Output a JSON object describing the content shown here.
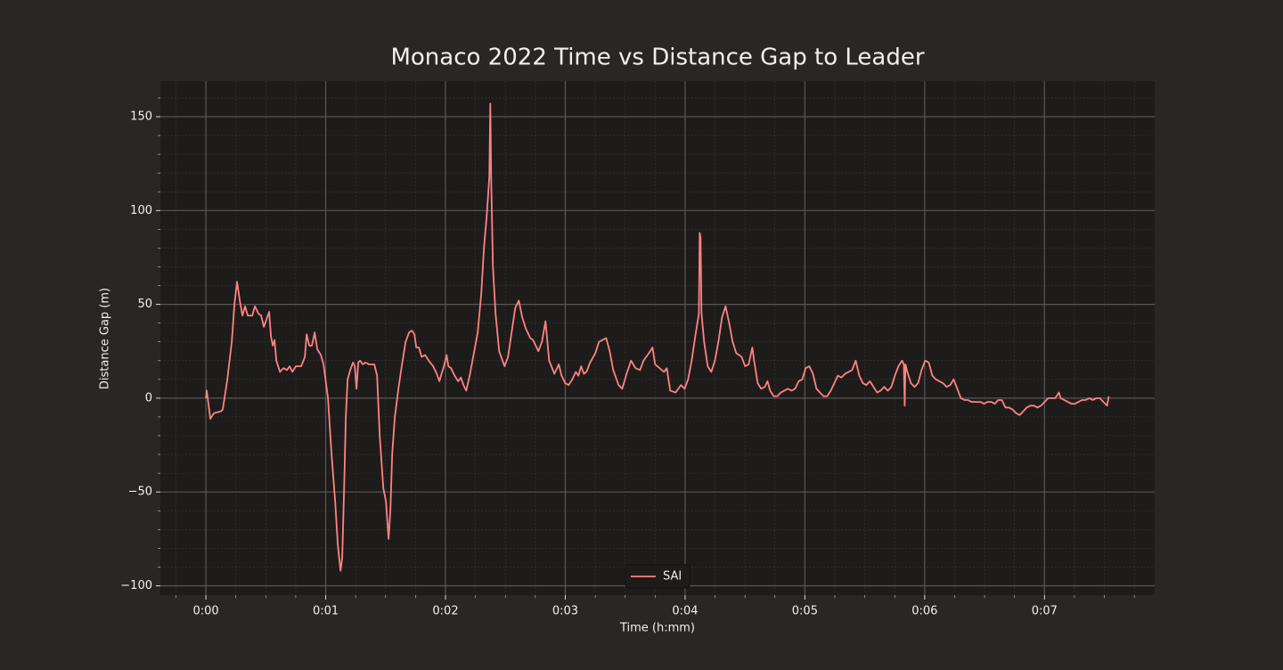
{
  "chart_data": {
    "type": "line",
    "title": "Monaco 2022 Time vs Distance Gap to Leader",
    "x_label": "Time (h:mm)",
    "y_label": "Distance Gap (m)",
    "xlim": [
      -0.38,
      7.92
    ],
    "ylim": [
      -105,
      169
    ],
    "xticks": [
      {
        "value": 0,
        "label": "0:00"
      },
      {
        "value": 1,
        "label": "0:01"
      },
      {
        "value": 2,
        "label": "0:02"
      },
      {
        "value": 3,
        "label": "0:03"
      },
      {
        "value": 4,
        "label": "0:04"
      },
      {
        "value": 5,
        "label": "0:05"
      },
      {
        "value": 6,
        "label": "0:06"
      },
      {
        "value": 7,
        "label": "0:07"
      }
    ],
    "yticks": [
      {
        "value": -100,
        "label": "−100"
      },
      {
        "value": -50,
        "label": "−50"
      },
      0,
      50,
      100,
      150
    ],
    "xminorticks": [
      -0.25,
      0.25,
      0.5,
      0.75,
      1.25,
      1.5,
      1.75,
      2.25,
      2.5,
      2.75,
      3.25,
      3.5,
      3.75,
      4.25,
      4.5,
      4.75,
      5.25,
      5.5,
      5.75,
      6.25,
      6.5,
      6.75,
      7.25,
      7.5,
      7.75
    ],
    "yminorticks": [
      -90,
      -80,
      -70,
      -60,
      -40,
      -30,
      -20,
      -10,
      10,
      20,
      30,
      40,
      60,
      70,
      80,
      90,
      110,
      120,
      130,
      140,
      160
    ],
    "grid": true,
    "minor_grid": true,
    "legend": "lower center",
    "x": [
      0,
      0.007,
      0.015,
      0.037,
      0.067,
      0.126,
      0.141,
      0.179,
      0.216,
      0.238,
      0.26,
      0.283,
      0.305,
      0.327,
      0.35,
      0.387,
      0.409,
      0.439,
      0.461,
      0.484,
      0.506,
      0.528,
      0.543,
      0.558,
      0.573,
      0.588,
      0.618,
      0.647,
      0.677,
      0.699,
      0.722,
      0.751,
      0.796,
      0.826,
      0.841,
      0.863,
      0.885,
      0.908,
      0.93,
      0.96,
      0.982,
      1.019,
      1.049,
      1.079,
      1.101,
      1.124,
      1.138,
      1.153,
      1.168,
      1.183,
      1.205,
      1.228,
      1.243,
      1.257,
      1.272,
      1.287,
      1.31,
      1.332,
      1.362,
      1.384,
      1.406,
      1.429,
      1.451,
      1.481,
      1.503,
      1.525,
      1.54,
      1.555,
      1.577,
      1.607,
      1.637,
      1.667,
      1.696,
      1.719,
      1.741,
      1.756,
      1.778,
      1.801,
      1.83,
      1.86,
      1.897,
      1.927,
      1.949,
      1.972,
      1.987,
      2.009,
      2.024,
      2.046,
      2.076,
      2.106,
      2.128,
      2.15,
      2.173,
      2.202,
      2.24,
      2.269,
      2.299,
      2.321,
      2.344,
      2.366,
      2.374,
      2.381,
      2.396,
      2.418,
      2.448,
      2.493,
      2.522,
      2.552,
      2.582,
      2.612,
      2.641,
      2.671,
      2.708,
      2.731,
      2.753,
      2.775,
      2.805,
      2.835,
      2.865,
      2.909,
      2.946,
      2.969,
      2.999,
      3.028,
      3.058,
      3.088,
      3.11,
      3.132,
      3.155,
      3.177,
      3.207,
      3.251,
      3.281,
      3.311,
      3.341,
      3.371,
      3.4,
      3.445,
      3.475,
      3.512,
      3.549,
      3.586,
      3.624,
      3.653,
      3.698,
      3.728,
      3.75,
      3.787,
      3.824,
      3.847,
      3.876,
      3.921,
      3.966,
      3.996,
      4.025,
      4.055,
      4.085,
      4.115,
      4.122,
      4.129,
      4.137,
      4.159,
      4.189,
      4.219,
      4.249,
      4.278,
      4.308,
      4.338,
      4.368,
      4.397,
      4.427,
      4.472,
      4.501,
      4.531,
      4.561,
      4.576,
      4.606,
      4.635,
      4.665,
      4.688,
      4.71,
      4.74,
      4.769,
      4.799,
      4.829,
      4.859,
      4.888,
      4.918,
      4.948,
      4.978,
      5.007,
      5.037,
      5.067,
      5.097,
      5.126,
      5.156,
      5.186,
      5.216,
      5.246,
      5.275,
      5.305,
      5.335,
      5.365,
      5.394,
      5.424,
      5.454,
      5.484,
      5.513,
      5.543,
      5.573,
      5.603,
      5.632,
      5.662,
      5.692,
      5.722,
      5.751,
      5.781,
      5.811,
      5.826,
      5.833,
      5.84,
      5.855,
      5.885,
      5.915,
      5.945,
      5.974,
      6.004,
      6.034,
      6.064,
      6.094,
      6.123,
      6.153,
      6.183,
      6.213,
      6.242,
      6.272,
      6.302,
      6.332,
      6.361,
      6.391,
      6.429,
      6.466,
      6.495,
      6.525,
      6.555,
      6.585,
      6.614,
      6.644,
      6.674,
      6.703,
      6.733,
      6.763,
      6.793,
      6.823,
      6.852,
      6.882,
      6.912,
      6.942,
      6.971,
      7.001,
      7.031,
      7.061,
      7.09,
      7.12,
      7.135,
      7.165,
      7.195,
      7.224,
      7.254,
      7.284,
      7.314,
      7.343,
      7.373,
      7.403,
      7.433,
      7.462,
      7.492,
      7.522,
      7.537
    ],
    "series": [
      {
        "name": "SAI",
        "color": "#ff8383",
        "values": [
          0,
          4,
          0,
          -11,
          -8,
          -7,
          -6,
          10,
          30,
          50,
          62,
          52,
          44,
          49,
          44,
          44,
          49,
          45,
          44,
          38,
          42,
          46,
          33,
          28,
          31,
          20,
          14,
          16,
          15,
          17,
          14,
          17,
          17,
          22,
          34,
          28,
          28,
          35,
          26,
          23,
          18,
          0,
          -30,
          -55,
          -78,
          -92,
          -85,
          -50,
          -10,
          10,
          15,
          19,
          17,
          5,
          19,
          20,
          18,
          19,
          18,
          18,
          18,
          12,
          -20,
          -48,
          -55,
          -75,
          -60,
          -30,
          -10,
          5,
          18,
          30,
          35,
          36,
          34,
          27,
          27,
          22,
          23,
          20,
          17,
          13,
          9,
          14,
          17,
          23,
          17,
          16,
          12,
          9,
          11,
          7,
          4,
          12,
          25,
          35,
          56,
          80,
          97,
          118,
          157,
          118,
          70,
          45,
          25,
          17,
          22,
          35,
          48,
          52,
          43,
          37,
          32,
          31,
          28,
          25,
          30,
          41,
          20,
          13,
          18,
          12,
          8,
          7,
          10,
          14,
          12,
          17,
          13,
          14,
          19,
          24,
          30,
          31,
          32,
          25,
          15,
          7,
          5,
          13,
          20,
          16,
          15,
          20,
          24,
          27,
          18,
          16,
          14,
          16,
          4,
          3,
          7,
          5,
          10,
          20,
          33,
          45,
          88,
          86,
          45,
          30,
          17,
          14,
          20,
          30,
          43,
          49,
          40,
          30,
          24,
          22,
          17,
          18,
          27,
          20,
          8,
          5,
          6,
          9,
          4,
          1,
          1,
          3,
          4,
          5,
          4,
          5,
          9,
          10,
          16,
          17,
          13,
          5,
          3,
          1,
          1,
          4,
          8,
          12,
          11,
          13,
          14,
          15,
          20,
          12,
          8,
          7,
          9,
          6,
          3,
          4,
          6,
          4,
          6,
          12,
          17,
          20,
          18,
          -4,
          18,
          14,
          8,
          6,
          8,
          15,
          20,
          19,
          12,
          10,
          9,
          8,
          6,
          7,
          10,
          5,
          0,
          -1,
          -1,
          -2,
          -2,
          -2,
          -3,
          -2,
          -2,
          -3,
          -1,
          -1,
          -5,
          -5,
          -6,
          -8,
          -9,
          -7,
          -5,
          -4,
          -4,
          -5,
          -4,
          -2,
          0,
          0,
          0,
          3,
          0,
          -1,
          -2,
          -3,
          -3,
          -2,
          -1,
          -1,
          0,
          -1,
          0,
          0,
          -2,
          -4,
          1
        ]
      }
    ]
  }
}
